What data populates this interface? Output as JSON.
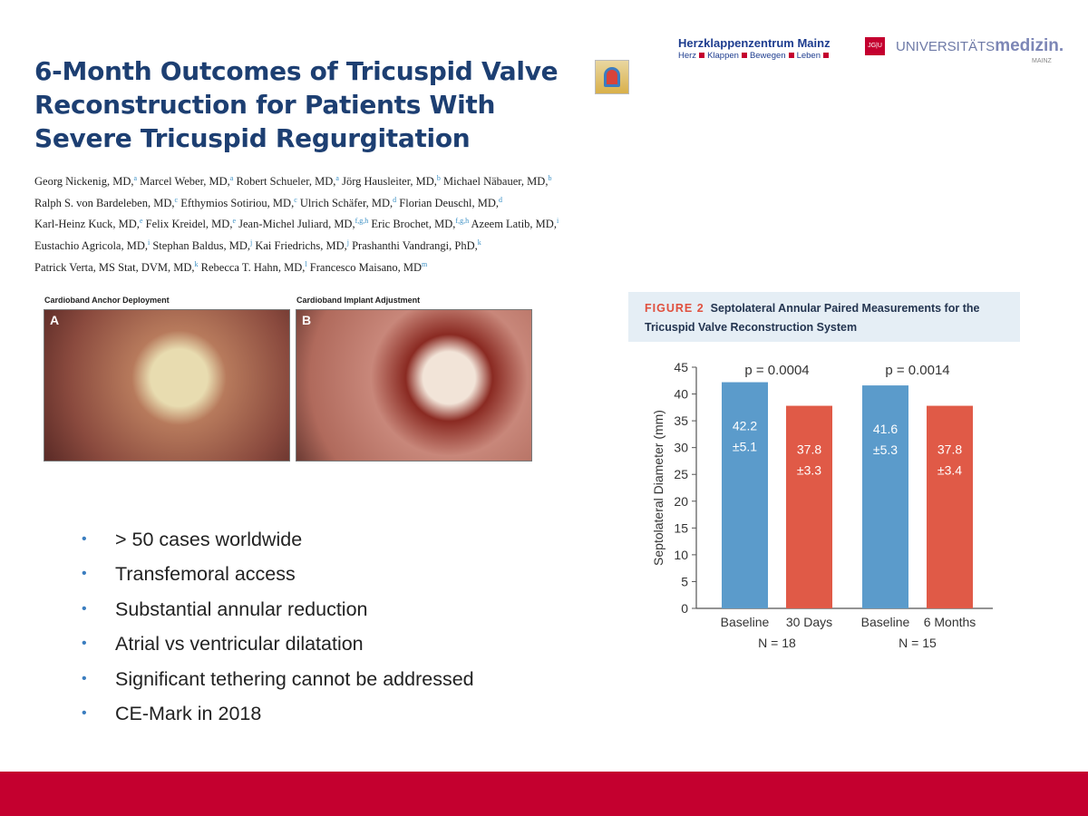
{
  "title": "6-Month Outcomes of Tricuspid Valve Reconstruction for Patients With Severe Tricuspid Regurgitation",
  "authors": [
    [
      [
        "Georg Nickenig, MD,",
        "a"
      ],
      [
        "Marcel Weber, MD,",
        "a"
      ],
      [
        "Robert Schueler, MD,",
        "a"
      ],
      [
        "Jörg Hausleiter, MD,",
        "b"
      ],
      [
        "Michael Näbauer, MD,",
        "b"
      ]
    ],
    [
      [
        "Ralph S. von Bardeleben, MD,",
        "c"
      ],
      [
        "Efthymios Sotiriou, MD,",
        "c"
      ],
      [
        "Ulrich Schäfer, MD,",
        "d"
      ],
      [
        "Florian Deuschl, MD,",
        "d"
      ]
    ],
    [
      [
        "Karl-Heinz Kuck, MD,",
        "e"
      ],
      [
        "Felix Kreidel, MD,",
        "e"
      ],
      [
        "Jean-Michel Juliard, MD,",
        "f,g,h"
      ],
      [
        "Eric Brochet, MD,",
        "f,g,h"
      ],
      [
        "Azeem Latib, MD,",
        "i"
      ]
    ],
    [
      [
        "Eustachio Agricola, MD,",
        "i"
      ],
      [
        "Stephan Baldus, MD,",
        "j"
      ],
      [
        "Kai Friedrichs, MD,",
        "j"
      ],
      [
        "Prashanthi Vandrangi, PhD,",
        "k"
      ]
    ],
    [
      [
        "Patrick Verta, MS Stat, DVM, MD,",
        "k"
      ],
      [
        "Rebecca T. Hahn, MD,",
        "l"
      ],
      [
        "Francesco Maisano, MD",
        "m"
      ]
    ]
  ],
  "logos": {
    "hk_title": "Herzklappenzentrum Mainz",
    "hk_tagline": [
      "Herz",
      "Klappen",
      "Bewegen",
      "Leben"
    ],
    "jgu": "JG|U",
    "um_light": "UNIVERSITÄTS",
    "um_bold": "medizin.",
    "um_city": "MAINZ"
  },
  "images": [
    {
      "caption": "Cardioband Anchor Deployment",
      "label": "A"
    },
    {
      "caption": "Cardioband Implant Adjustment",
      "label": "B"
    }
  ],
  "bullets": [
    "> 50 cases worldwide",
    "Transfemoral access",
    "Substantial annular reduction",
    "Atrial vs ventricular dilatation",
    "Significant tethering cannot be addressed",
    "CE-Mark in 2018"
  ],
  "figure": {
    "label": "FIGURE 2",
    "title": "Septolateral Annular Paired Measurements for the Tricuspid Valve Reconstruction System"
  },
  "chart_data": {
    "type": "bar",
    "ylabel": "Septolateral Diameter (mm)",
    "ylim": [
      0,
      45
    ],
    "yticks": [
      0,
      5,
      10,
      15,
      20,
      25,
      30,
      35,
      40,
      45
    ],
    "groups": [
      {
        "n": "N = 18",
        "p": "p = 0.0004",
        "bars": [
          {
            "category": "Baseline",
            "value": 42.2,
            "sd": "±5.1",
            "label": "42.2"
          },
          {
            "category": "30 Days",
            "value": 37.8,
            "sd": "±3.3",
            "label": "37.8"
          }
        ]
      },
      {
        "n": "N = 15",
        "p": "p = 0.0014",
        "bars": [
          {
            "category": "Baseline",
            "value": 41.6,
            "sd": "±5.3",
            "label": "41.6"
          },
          {
            "category": "6 Months",
            "value": 37.8,
            "sd": "±3.4",
            "label": "37.8"
          }
        ]
      }
    ],
    "colors": {
      "baseline": "#5b9bcb",
      "followup": "#e05a47"
    }
  },
  "footer_color": "#c4002f"
}
